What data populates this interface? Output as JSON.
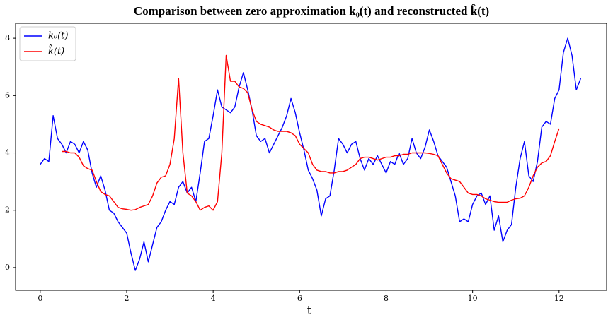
{
  "chart_data": {
    "type": "line",
    "title": "Comparison between zero approximation k₀(t)  and reconstructed  k̂(t)",
    "x_label": "t",
    "x": [
      0,
      0.1,
      0.2,
      0.3,
      0.4,
      0.5,
      0.6,
      0.7,
      0.8,
      0.9,
      1.0,
      1.1,
      1.2,
      1.3,
      1.4,
      1.5,
      1.6,
      1.7,
      1.8,
      1.9,
      2.0,
      2.1,
      2.2,
      2.3,
      2.4,
      2.5,
      2.6,
      2.7,
      2.8,
      2.9,
      3.0,
      3.1,
      3.2,
      3.3,
      3.4,
      3.5,
      3.6,
      3.7,
      3.8,
      3.9,
      4.0,
      4.1,
      4.2,
      4.3,
      4.4,
      4.5,
      4.6,
      4.7,
      4.8,
      4.9,
      5.0,
      5.1,
      5.2,
      5.3,
      5.4,
      5.5,
      5.6,
      5.7,
      5.8,
      5.9,
      6.0,
      6.1,
      6.2,
      6.3,
      6.4,
      6.5,
      6.6,
      6.7,
      6.8,
      6.9,
      7.0,
      7.1,
      7.2,
      7.3,
      7.4,
      7.5,
      7.6,
      7.7,
      7.8,
      7.9,
      8.0,
      8.1,
      8.2,
      8.3,
      8.4,
      8.5,
      8.6,
      8.7,
      8.8,
      8.9,
      9.0,
      9.1,
      9.2,
      9.3,
      9.4,
      9.5,
      9.6,
      9.7,
      9.8,
      9.9,
      10.0,
      10.1,
      10.2,
      10.3,
      10.4,
      10.5,
      10.6,
      10.7,
      10.8,
      10.9,
      11.0,
      11.1,
      11.2,
      11.3,
      11.4,
      11.5,
      11.6,
      11.7,
      11.8,
      11.9,
      12.0,
      12.1,
      12.2,
      12.3,
      12.4,
      12.5
    ],
    "series": [
      {
        "name": "k₀(t)",
        "color": "#0000ff",
        "values": [
          3.6,
          3.8,
          3.7,
          5.3,
          4.5,
          4.3,
          4.0,
          4.4,
          4.3,
          4.0,
          4.4,
          4.1,
          3.3,
          2.8,
          3.2,
          2.7,
          2.0,
          1.9,
          1.6,
          1.4,
          1.2,
          0.5,
          -0.1,
          0.3,
          0.9,
          0.2,
          0.8,
          1.4,
          1.6,
          2.0,
          2.3,
          2.2,
          2.8,
          3.0,
          2.6,
          2.8,
          2.3,
          3.3,
          4.4,
          4.5,
          5.3,
          6.2,
          5.6,
          5.5,
          5.4,
          5.6,
          6.3,
          6.8,
          6.2,
          5.5,
          4.6,
          4.4,
          4.5,
          4.0,
          4.3,
          4.6,
          4.9,
          5.3,
          5.9,
          5.4,
          4.7,
          4.1,
          3.4,
          3.1,
          2.7,
          1.8,
          2.4,
          2.5,
          3.4,
          4.5,
          4.3,
          4.0,
          4.3,
          4.4,
          3.8,
          3.4,
          3.8,
          3.6,
          3.9,
          3.6,
          3.3,
          3.7,
          3.6,
          4.0,
          3.6,
          3.8,
          4.5,
          4.0,
          3.8,
          4.2,
          4.8,
          4.4,
          3.9,
          3.7,
          3.5,
          3.0,
          2.5,
          1.6,
          1.7,
          1.6,
          2.2,
          2.5,
          2.6,
          2.2,
          2.5,
          1.3,
          1.8,
          0.9,
          1.3,
          1.5,
          2.8,
          3.8,
          4.4,
          3.2,
          3.0,
          3.7,
          4.9,
          5.1,
          5.0,
          5.9,
          6.2,
          7.5,
          8.0,
          7.4,
          6.2,
          6.6
        ]
      },
      {
        "name": "k̂(t)",
        "color": "#ff0000",
        "values": [
          null,
          null,
          null,
          null,
          null,
          4.05,
          4.05,
          4.0,
          4.0,
          3.85,
          3.55,
          3.45,
          3.4,
          3.0,
          2.65,
          2.55,
          2.5,
          2.3,
          2.1,
          2.05,
          2.03,
          2.0,
          2.02,
          2.1,
          2.15,
          2.2,
          2.5,
          2.95,
          3.15,
          3.2,
          3.6,
          4.5,
          6.6,
          4.0,
          2.6,
          2.5,
          2.3,
          2.0,
          2.1,
          2.15,
          2.0,
          2.3,
          4.0,
          7.4,
          6.5,
          6.5,
          6.3,
          6.25,
          6.1,
          5.5,
          5.1,
          5.0,
          4.95,
          4.9,
          4.8,
          4.75,
          4.75,
          4.75,
          4.7,
          4.6,
          4.3,
          4.15,
          4.0,
          3.6,
          3.4,
          3.35,
          3.35,
          3.3,
          3.3,
          3.35,
          3.35,
          3.4,
          3.5,
          3.6,
          3.8,
          3.85,
          3.85,
          3.8,
          3.75,
          3.8,
          3.85,
          3.85,
          3.9,
          3.9,
          3.95,
          3.95,
          4.0,
          4.0,
          4.0,
          4.0,
          3.98,
          3.95,
          3.9,
          3.6,
          3.3,
          3.1,
          3.05,
          3.0,
          2.8,
          2.6,
          2.55,
          2.55,
          2.5,
          2.4,
          2.35,
          2.3,
          2.28,
          2.28,
          2.28,
          2.35,
          2.4,
          2.42,
          2.5,
          2.8,
          3.2,
          3.5,
          3.65,
          3.7,
          3.9,
          4.4,
          4.85,
          null,
          null,
          null,
          null,
          null
        ]
      }
    ],
    "xlim": [
      -0.57,
      13.1
    ],
    "ylim": [
      -0.79,
      8.52
    ],
    "xticks": [
      0,
      2,
      4,
      6,
      8,
      10,
      12
    ],
    "yticks": [
      0,
      2,
      4,
      6,
      8
    ],
    "legend": "upper left",
    "grid": false
  }
}
